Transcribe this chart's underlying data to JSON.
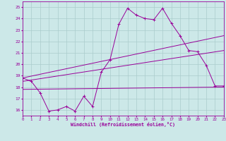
{
  "xlabel": "Windchill (Refroidissement éolien,°C)",
  "xlim": [
    0,
    23
  ],
  "ylim": [
    15.5,
    25.5
  ],
  "xticks": [
    0,
    1,
    2,
    3,
    4,
    5,
    6,
    7,
    8,
    9,
    10,
    11,
    12,
    13,
    14,
    15,
    16,
    17,
    18,
    19,
    20,
    21,
    22,
    23
  ],
  "yticks": [
    16,
    17,
    18,
    19,
    20,
    21,
    22,
    23,
    24,
    25
  ],
  "bg_color": "#cce8e8",
  "line_color": "#990099",
  "grid_color": "#aacccc",
  "line1_x": [
    0,
    1,
    2,
    3,
    4,
    5,
    6,
    7,
    8,
    9,
    10,
    11,
    12,
    13,
    14,
    15,
    16,
    17,
    18,
    19,
    20,
    21,
    22,
    23
  ],
  "line1_y": [
    18.8,
    18.5,
    17.5,
    15.9,
    16.0,
    16.3,
    15.9,
    17.2,
    16.3,
    19.3,
    20.4,
    23.5,
    24.9,
    24.3,
    24.0,
    23.9,
    24.9,
    23.6,
    22.5,
    21.2,
    21.1,
    19.9,
    18.1,
    18.1
  ],
  "line3_x": [
    0,
    23
  ],
  "line3_y": [
    18.8,
    22.5
  ],
  "line4_x": [
    0,
    23
  ],
  "line4_y": [
    18.5,
    21.2
  ],
  "line5_x": [
    0,
    23
  ],
  "line5_y": [
    17.8,
    18.0
  ]
}
